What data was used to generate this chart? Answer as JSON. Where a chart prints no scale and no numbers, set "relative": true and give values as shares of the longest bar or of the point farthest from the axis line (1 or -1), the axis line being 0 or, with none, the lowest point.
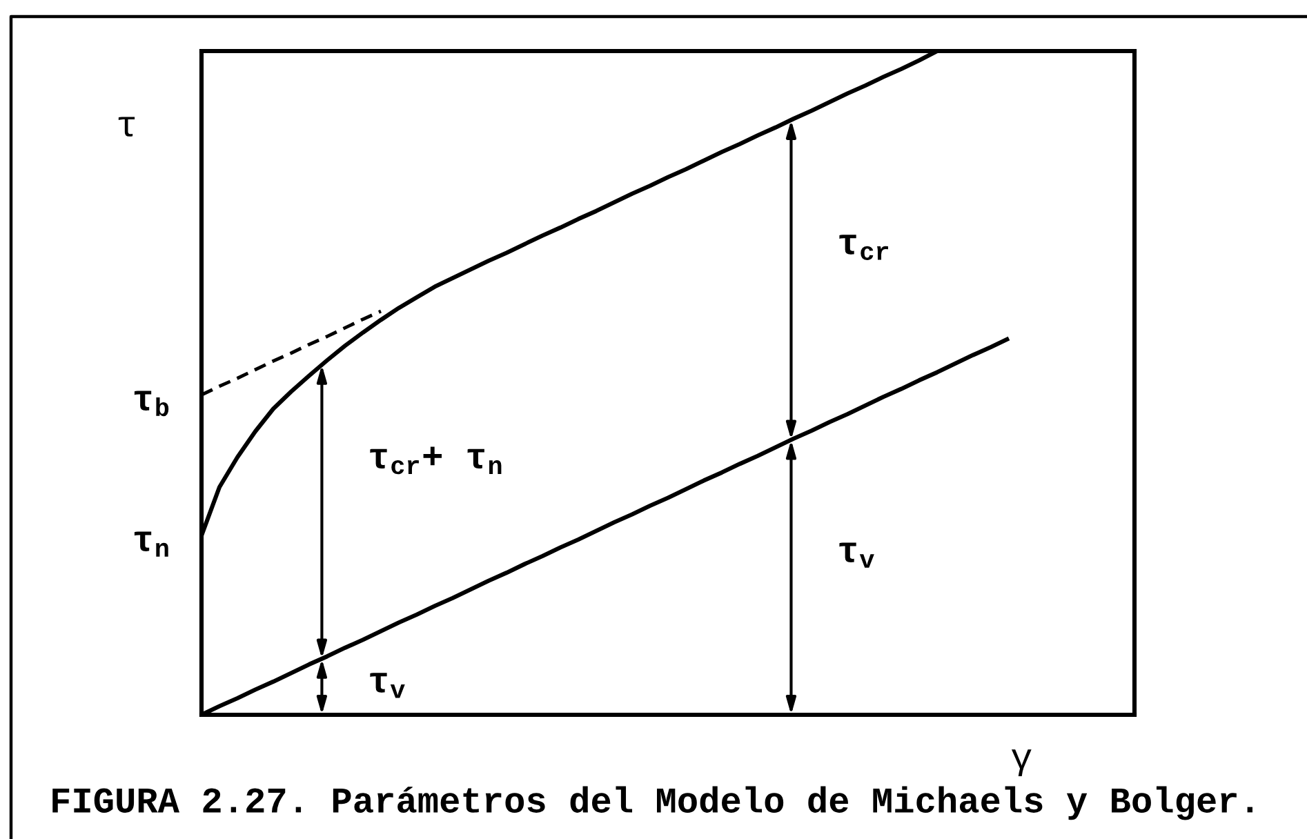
{
  "chart_data": {
    "type": "line",
    "relative": true,
    "line_style": "solid",
    "xlabel": "γ",
    "ylabel": "τ",
    "categories": [
      null,
      null,
      null,
      null,
      null,
      null,
      null,
      null,
      null,
      null,
      null,
      null,
      null,
      null,
      null,
      null,
      null,
      null,
      null,
      null,
      null,
      null,
      null,
      null,
      null,
      null,
      null,
      null,
      null,
      null,
      null,
      null,
      null,
      null,
      null,
      null,
      null,
      null,
      null,
      null,
      null,
      null,
      null,
      null,
      null,
      null,
      null,
      null,
      null,
      null,
      null,
      null,
      null
    ],
    "series": [
      {
        "color": "#000000",
        "values": [
          0.27,
          0.343,
          0.388,
          0.427,
          0.461,
          0.487,
          0.511,
          0.534,
          0.556,
          0.576,
          0.595,
          0.613,
          0.629,
          0.645,
          0.658,
          0.671,
          0.684,
          0.696,
          0.709,
          0.722,
          0.734,
          0.747,
          0.759,
          0.772,
          0.785,
          0.797,
          0.81,
          0.822,
          0.835,
          0.848,
          0.86,
          0.873,
          0.885,
          0.898,
          0.91,
          0.923,
          0.936,
          0.948,
          0.961,
          0.973,
          0.986,
          1.0,
          null,
          null,
          null,
          null,
          null,
          null,
          null,
          null,
          null,
          null,
          null
        ]
      },
      {
        "color": "#000000",
        "values": [
          0,
          0.013,
          0.025,
          0.038,
          0.05,
          0.063,
          0.076,
          0.088,
          0.101,
          0.113,
          0.126,
          0.139,
          0.151,
          0.164,
          0.176,
          0.189,
          0.202,
          0.214,
          0.227,
          0.239,
          0.252,
          0.264,
          0.277,
          0.29,
          0.302,
          0.315,
          0.327,
          0.34,
          0.353,
          0.365,
          0.378,
          0.39,
          0.403,
          0.416,
          0.428,
          0.441,
          0.453,
          0.466,
          0.479,
          0.491,
          0.504,
          0.516,
          0.529,
          0.542,
          0.554,
          0.567,
          null,
          null,
          null,
          null,
          null,
          null,
          null
        ]
      },
      {
        "color": "#000000",
        "line_style": "dashed",
        "values": [
          0.482,
          0.495,
          0.507,
          0.52,
          0.533,
          0.545,
          0.558,
          0.57,
          0.583,
          0.596,
          0.608,
          null,
          null,
          null,
          null,
          null,
          null,
          null,
          null,
          null,
          null,
          null,
          null,
          null,
          null,
          null,
          null,
          null,
          null,
          null,
          null,
          null,
          null,
          null,
          null,
          null,
          null,
          null,
          null,
          null,
          null,
          null,
          null,
          null,
          null,
          null,
          null,
          null,
          null,
          null,
          null,
          null,
          null
        ]
      }
    ],
    "annotations": [
      "τ$_{b}$",
      "τ$_{n}$",
      "τ$_{cr}$+ τ$_{n}$",
      "τ$_{v}$",
      "τ$_{cr}$",
      "τ$_{v}$",
      "FIGURA 2.27. Parámetros del Modelo de Michaels y Bolger."
    ]
  }
}
